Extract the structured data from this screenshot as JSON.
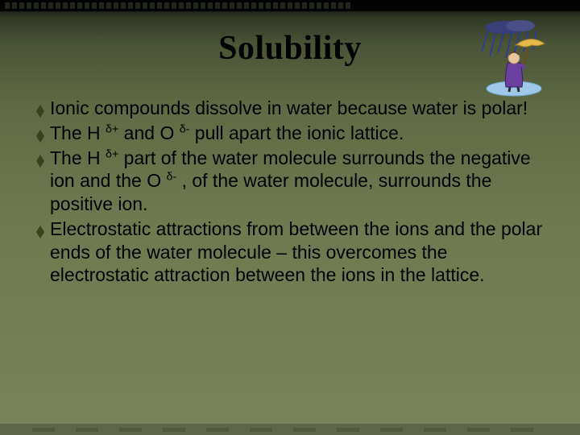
{
  "slide": {
    "title": "Solubility",
    "title_fontsize": 42,
    "title_font_family": "Georgia",
    "title_weight": 900,
    "body_fontsize": 23,
    "bullet_color": "#38421f",
    "text_color": "#000000",
    "background_gradient": [
      "#000000",
      "#7a845a"
    ],
    "bullets": [
      {
        "html": "Ionic compounds dissolve in water because water is polar!"
      },
      {
        "html": "The H <sup>δ+</sup> and O <sup>δ-</sup> pull apart the ionic lattice."
      },
      {
        "html": "The H <sup>δ+</sup> part of the water molecule surrounds the negative ion and the O <sup>δ-</sup> , of the water molecule, surrounds the positive ion."
      },
      {
        "html": "Electrostatic attractions from between the ions and the polar ends of the water molecule – this overcomes the electrostatic attraction between the ions in the lattice."
      }
    ]
  },
  "clipart": {
    "name": "person-with-umbrella-in-rain",
    "rain_color": "#2a3aa0",
    "cloud_color": "#3a3f78",
    "umbrella_color": "#e5b84a",
    "coat_color": "#6a3fa0",
    "puddle_color": "#9fc8e8",
    "skin_color": "#e8c59a",
    "width": 96,
    "height": 96
  }
}
